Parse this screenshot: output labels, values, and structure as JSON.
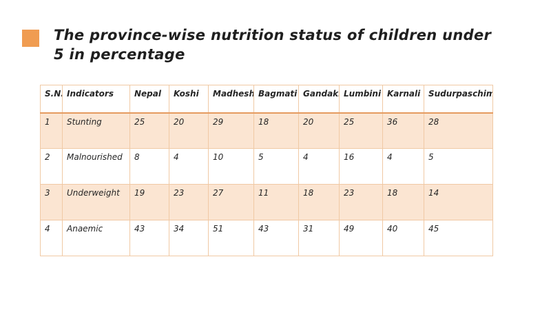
{
  "slide": {
    "title": "The province-wise nutrition status of children under 5 in percentage"
  },
  "colors": {
    "accent_orange": "#F09C51",
    "row_band_fill": "#FBE5D2",
    "cell_border": "#F0C9A4",
    "header_underline": "#E59A5F",
    "text": "#262626"
  },
  "table": {
    "columns": [
      "S.N.",
      "Indicators",
      "Nepal",
      "Koshi",
      "Madhesh",
      "Bagmati",
      "Gandaki",
      "Lumbini",
      "Karnali",
      "Sudurpaschim"
    ],
    "rows": [
      {
        "cells": [
          "1",
          "Stunting",
          "25",
          "20",
          "29",
          "18",
          "20",
          "25",
          "36",
          "28"
        ]
      },
      {
        "cells": [
          "2",
          "Malnourished",
          "8",
          "4",
          "10",
          "5",
          "4",
          "16",
          "4",
          "5"
        ]
      },
      {
        "cells": [
          "3",
          "Underweight",
          "19",
          "23",
          "27",
          "11",
          "18",
          "23",
          "18",
          "14"
        ]
      },
      {
        "cells": [
          "4",
          "Anaemic",
          "43",
          "34",
          "51",
          "43",
          "31",
          "49",
          "40",
          "45"
        ]
      }
    ]
  },
  "chart_data": {
    "type": "table",
    "title": "The province-wise nutrition status of children under 5 in percentage",
    "categories": [
      "Nepal",
      "Koshi",
      "Madhesh",
      "Bagmati",
      "Gandaki",
      "Lumbini",
      "Karnali",
      "Sudurpaschim"
    ],
    "series": [
      {
        "name": "Stunting",
        "values": [
          25,
          20,
          29,
          18,
          20,
          25,
          36,
          28
        ]
      },
      {
        "name": "Malnourished",
        "values": [
          8,
          4,
          10,
          5,
          4,
          16,
          4,
          5
        ]
      },
      {
        "name": "Underweight",
        "values": [
          19,
          23,
          27,
          11,
          18,
          23,
          18,
          14
        ]
      },
      {
        "name": "Anaemic",
        "values": [
          43,
          34,
          51,
          43,
          31,
          49,
          40,
          45
        ]
      }
    ]
  }
}
